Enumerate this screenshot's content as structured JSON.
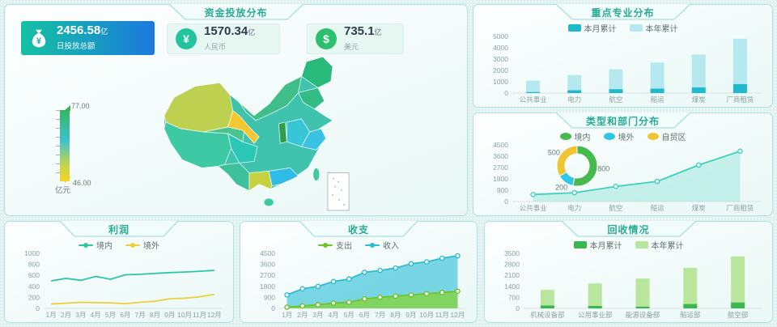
{
  "fund_panel": {
    "title": "资金投放分布",
    "kpis": [
      {
        "value": "2456.58",
        "unit": "亿",
        "label": "日投放总额"
      },
      {
        "value": "1570.34",
        "unit": "亿",
        "label": "人民币"
      },
      {
        "value": "735.1",
        "unit": "亿",
        "label": "美元"
      }
    ],
    "kpi_icons": {
      "bag_symbol": "¥",
      "yuan_symbol": "¥",
      "dollar_symbol": "$"
    },
    "visualmap": {
      "max": "77.00",
      "min": "46.00",
      "unit": "亿元"
    }
  },
  "chart_data": [
    {
      "type": "bar",
      "title": "重点专业分布",
      "categories": [
        "公共事业",
        "电力",
        "航空",
        "船运",
        "煤炭",
        "厂商租赁"
      ],
      "stacked": true,
      "series": [
        {
          "name": "本月累计",
          "color": "#1fb9cb",
          "values": [
            100,
            250,
            350,
            400,
            500,
            800
          ]
        },
        {
          "name": "本年累计",
          "color": "#b6e9ef",
          "values": [
            1000,
            1350,
            1750,
            2300,
            2900,
            4000
          ]
        }
      ],
      "totals": [
        1100,
        1600,
        2100,
        2700,
        3400,
        4800
      ],
      "ylim": [
        0,
        5000
      ],
      "ytick": 1000,
      "legend_position": "top",
      "grid": false
    },
    {
      "type": "donut+line",
      "title": "类型和部门分布",
      "categories": [
        "公共事业",
        "电力",
        "航空",
        "船运",
        "煤炭",
        "厂商租赁"
      ],
      "donut": {
        "slices": [
          {
            "name": "境内",
            "value": 800,
            "color": "#46b94f"
          },
          {
            "name": "境外",
            "value": 200,
            "color": "#30c6e6"
          },
          {
            "name": "自贸区",
            "value": 500,
            "color": "#f0c534"
          }
        ]
      },
      "line": {
        "color": "#3fd1bd",
        "fill": "#8fe3d6",
        "values": [
          560,
          700,
          1200,
          1600,
          2900,
          4000
        ]
      },
      "ylim": [
        0,
        4500
      ],
      "ytick": 900,
      "legend_position": "top",
      "grid": false
    },
    {
      "type": "line",
      "title": "利润",
      "categories": [
        "1月",
        "2月",
        "3月",
        "4月",
        "5月",
        "6月",
        "7月",
        "8月",
        "9月",
        "10月",
        "11月",
        "12月"
      ],
      "series": [
        {
          "name": "境内",
          "color": "#2fc5a5",
          "values": [
            500,
            545,
            510,
            580,
            530,
            610,
            620,
            635,
            650,
            660,
            675,
            690
          ]
        },
        {
          "name": "境外",
          "color": "#edcf3a",
          "values": [
            80,
            95,
            110,
            105,
            100,
            85,
            110,
            130,
            175,
            185,
            210,
            255
          ]
        }
      ],
      "ylim": [
        0,
        1000
      ],
      "ytick": 200,
      "legend_position": "top",
      "grid": false
    },
    {
      "type": "area",
      "title": "收支",
      "categories": [
        "1月",
        "2月",
        "3月",
        "4月",
        "5月",
        "6月",
        "7月",
        "8月",
        "9月",
        "10月",
        "11月",
        "12月"
      ],
      "series": [
        {
          "name": "支出",
          "color": "#6cc32e",
          "fill": "#82d34a",
          "values": [
            100,
            200,
            300,
            430,
            500,
            780,
            900,
            1000,
            1100,
            1200,
            1300,
            1400
          ]
        },
        {
          "name": "收入",
          "color": "#2ebbd4",
          "fill": "#63cfe1",
          "values": [
            1100,
            1600,
            1800,
            2200,
            2400,
            2950,
            3100,
            3300,
            3650,
            3800,
            4100,
            4300
          ]
        }
      ],
      "ylim": [
        0,
        4500
      ],
      "ytick": 900,
      "legend_position": "top",
      "grid": false
    },
    {
      "type": "bar",
      "title": "回收情况",
      "categories": [
        "机械设备部",
        "公用事业部",
        "能源设备部",
        "船运部",
        "航空部"
      ],
      "stacked": true,
      "series": [
        {
          "name": "本月累计",
          "color": "#3bb84d",
          "values": [
            180,
            160,
            120,
            280,
            380
          ]
        },
        {
          "name": "本年累计",
          "color": "#b9e69d",
          "values": [
            1000,
            1420,
            1780,
            2300,
            2920
          ]
        }
      ],
      "totals": [
        1180,
        1580,
        1900,
        2580,
        3300
      ],
      "ylim": [
        0,
        3500
      ],
      "ytick": 700,
      "legend_position": "top",
      "grid": false
    }
  ]
}
